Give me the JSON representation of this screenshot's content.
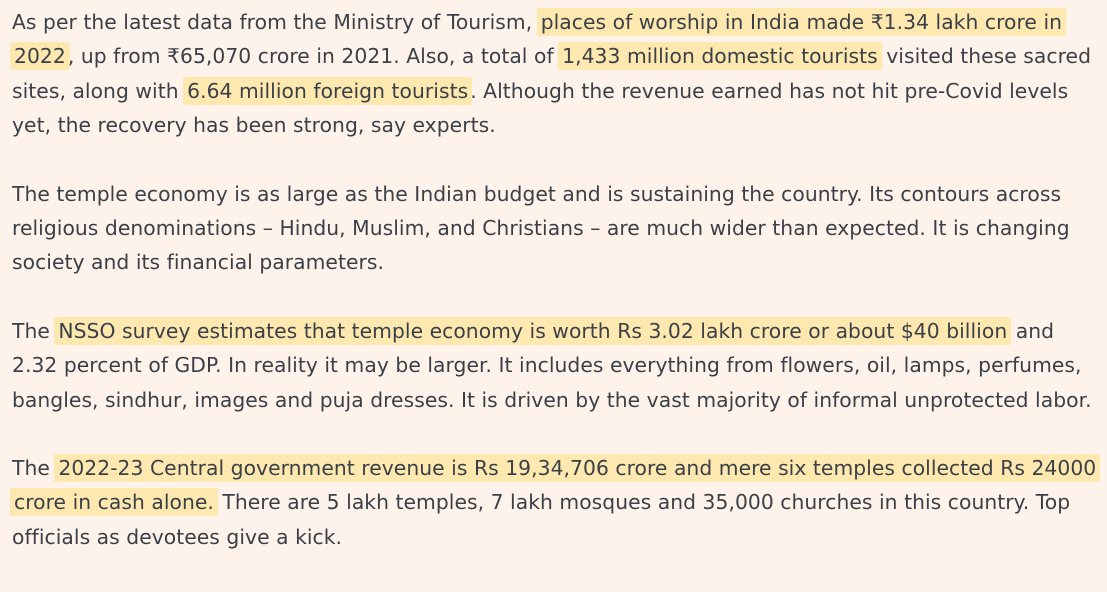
{
  "colors": {
    "background": "#fdf3ea",
    "text": "#3b3f47",
    "highlight": "#fde9b0"
  },
  "paragraphs": [
    {
      "segments": [
        {
          "text": "As per the latest data from the Ministry of Tourism, ",
          "highlight": false
        },
        {
          "text": "places of worship in India made ₹1.34 lakh crore in 2022",
          "highlight": true
        },
        {
          "text": ", up from ₹65,070 crore in 2021. Also, a total of ",
          "highlight": false
        },
        {
          "text": "1,433 million domestic tourists",
          "highlight": true
        },
        {
          "text": " visited these sacred sites, along with ",
          "highlight": false
        },
        {
          "text": "6.64 million foreign tourists",
          "highlight": true
        },
        {
          "text": ". Although the revenue earned has not hit pre-Covid levels yet, the recovery has been strong, say experts.",
          "highlight": false
        }
      ]
    },
    {
      "segments": [
        {
          "text": "The temple economy is as large as the Indian budget and is sustaining the country. Its contours across religious denominations – Hindu, Muslim, and Christians – are much wider than expected. It is changing society and its financial parameters.",
          "highlight": false
        }
      ]
    },
    {
      "segments": [
        {
          "text": "The ",
          "highlight": false
        },
        {
          "text": "NSSO survey estimates that temple economy is worth Rs 3.02 lakh crore or about $40 billion",
          "highlight": true
        },
        {
          "text": " and 2.32 percent of GDP. In reality it may be larger. It includes everything from flowers, oil, lamps, perfumes, bangles, sindhur, images and puja dresses. It is driven by the vast majority of informal unprotected labor.",
          "highlight": false
        }
      ]
    },
    {
      "segments": [
        {
          "text": "The ",
          "highlight": false
        },
        {
          "text": "2022-23 Central government revenue is Rs 19,34,706 crore and mere six temples collected Rs 24000 crore in cash alone.",
          "highlight": true
        },
        {
          "text": " There are 5 lakh temples, 7 lakh mosques and 35,000 churches in this country. Top officials as devotees give a kick.",
          "highlight": false
        }
      ]
    }
  ]
}
